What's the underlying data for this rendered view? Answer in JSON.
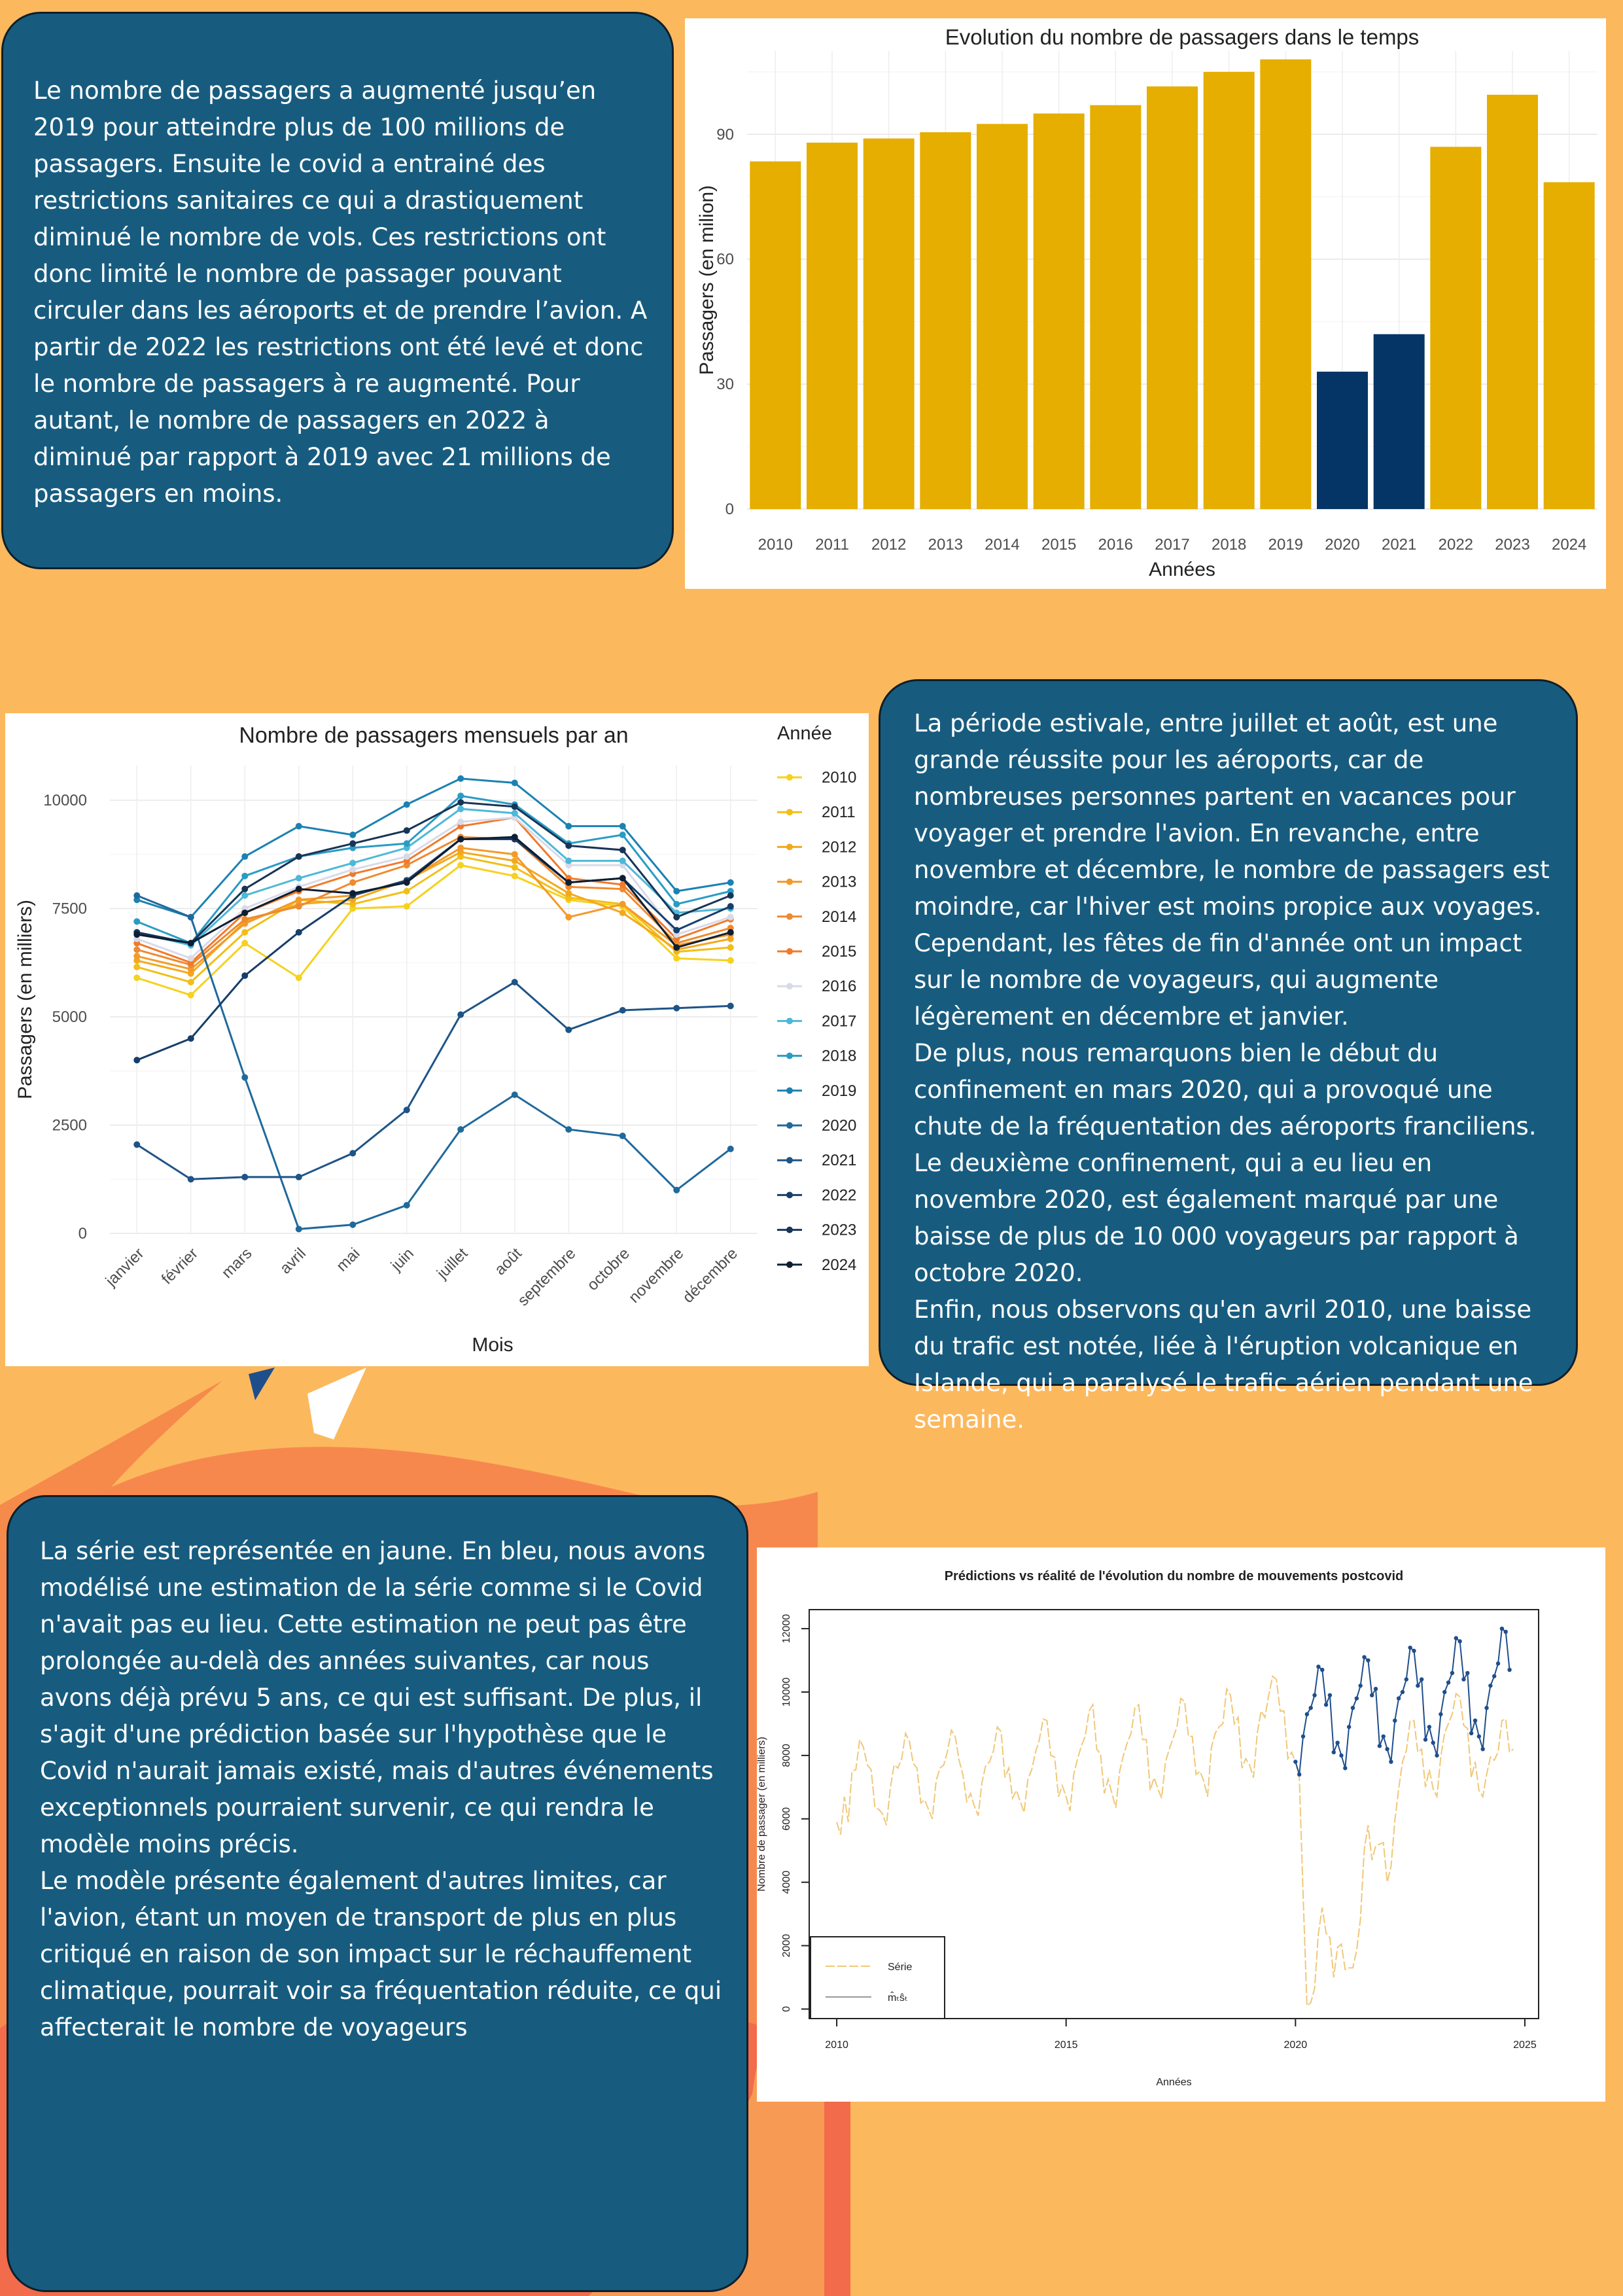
{
  "colors": {
    "background": "#FCB85D",
    "card": "#175C7F",
    "card_border": "#0E1F2C",
    "bar_normal": "#E5AE00",
    "bar_covid": "#053566",
    "series_yellow": "#F0C878",
    "series_blue": "#1F4E8C"
  },
  "text1": {
    "paragraphs": [
      "Le nombre de passagers a augmenté jusqu’en 2019 pour atteindre plus de 100 millions de passagers. Ensuite le covid a entrainé des restrictions sanitaires ce qui a drastiquement diminué le nombre de vols. Ces restrictions ont donc limité le nombre de passager pouvant circuler dans les aéroports et de prendre l’avion. A partir de 2022 les restrictions ont été levé et donc le nombre de passagers à re augmenté. Pour autant, le nombre de passagers en 2022 à diminué par rapport à 2019 avec 21 millions de passagers en moins."
    ]
  },
  "text2": {
    "paragraphs": [
      "La période estivale, entre juillet et août, est une grande réussite pour les aéroports, car de nombreuses personnes partent en vacances pour voyager et prendre l'avion. En revanche, entre novembre et décembre, le nombre de passagers est moindre, car l'hiver est moins propice aux voyages. Cependant, les fêtes de fin d'année ont un impact sur le nombre de voyageurs, qui augmente légèrement en décembre et janvier.",
      "De plus, nous remarquons bien le début du confinement en mars 2020, qui a provoqué une chute de la fréquentation des aéroports franciliens. Le deuxième confinement, qui a eu lieu en novembre 2020, est également marqué par une baisse de plus de 10 000 voyageurs par rapport à octobre 2020.",
      "Enfin, nous observons qu'en avril 2010, une baisse du trafic est notée, liée à l'éruption volcanique en Islande, qui a paralysé le trafic aérien pendant une semaine."
    ]
  },
  "text3": {
    "paragraphs": [
      "La série est représentée en jaune. En bleu, nous avons modélisé une estimation de la série comme si le Covid n'avait pas eu lieu. Cette estimation ne peut pas être prolongée au-delà des années suivantes, car nous avons déjà prévu 5 ans, ce qui est suffisant. De plus, il s'agit d'une prédiction basée sur l'hypothèse que le Covid n'aurait jamais existé, mais d'autres événements exceptionnels pourraient survenir, ce qui rendra le modèle moins précis.",
      "Le modèle présente également d'autres limites, car l'avion, étant un moyen de transport de plus en plus critiqué en raison de son impact sur le réchauffement climatique, pourrait voir sa fréquentation réduite, ce qui affecterait le nombre de voyageurs"
    ]
  },
  "chart_data": [
    {
      "type": "bar",
      "title": "Evolution du nombre de passagers dans le temps",
      "xlabel": "Années",
      "ylabel": "Passagers (en milion)",
      "ylim": [
        0,
        110
      ],
      "yticks": [
        0,
        30,
        60,
        90
      ],
      "grid": true,
      "categories": [
        "2010",
        "2011",
        "2012",
        "2013",
        "2014",
        "2015",
        "2016",
        "2017",
        "2018",
        "2019",
        "2020",
        "2021",
        "2022",
        "2023",
        "2024"
      ],
      "values": [
        83.5,
        88,
        89,
        90.5,
        92.5,
        95,
        97,
        101.5,
        105,
        108,
        33,
        42,
        87,
        99.5,
        78.5
      ],
      "highlight": [
        false,
        false,
        false,
        false,
        false,
        false,
        false,
        false,
        false,
        false,
        true,
        true,
        false,
        false,
        false
      ]
    },
    {
      "type": "line",
      "title": "Nombre de passagers mensuels par an",
      "xlabel": "Mois",
      "ylabel": "Passagers (en milliers)",
      "legend_title": "Année",
      "legend_position": "right",
      "ylim": [
        0,
        10800
      ],
      "yticks": [
        0,
        2500,
        5000,
        7500,
        10000
      ],
      "grid": true,
      "categories": [
        "janvier",
        "février",
        "mars",
        "avril",
        "mai",
        "juin",
        "juillet",
        "août",
        "septembre",
        "octobre",
        "novembre",
        "décembre"
      ],
      "series": [
        {
          "name": "2010",
          "color": "#F5D21E",
          "values": [
            5900,
            5500,
            6700,
            5900,
            7500,
            7550,
            8500,
            8250,
            7700,
            7550,
            6350,
            6300
          ]
        },
        {
          "name": "2011",
          "color": "#F2BE17",
          "values": [
            6150,
            5800,
            6950,
            7700,
            7600,
            7900,
            8700,
            8450,
            7750,
            7600,
            6500,
            6600
          ]
        },
        {
          "name": "2012",
          "color": "#F3A81C",
          "values": [
            6300,
            6000,
            7200,
            7600,
            7700,
            8150,
            8800,
            8600,
            7850,
            7400,
            6550,
            6800
          ]
        },
        {
          "name": "2013",
          "color": "#F39A2A",
          "values": [
            6400,
            6100,
            7150,
            7700,
            7800,
            8150,
            8900,
            8750,
            7300,
            7600,
            6650,
            6900
          ]
        },
        {
          "name": "2014",
          "color": "#EE8A2F",
          "values": [
            6550,
            6200,
            7250,
            7550,
            8100,
            8500,
            9150,
            9100,
            8000,
            7950,
            6700,
            7050
          ]
        },
        {
          "name": "2015",
          "color": "#F07A2A",
          "values": [
            6700,
            6250,
            7400,
            7900,
            8300,
            8600,
            9400,
            9600,
            8200,
            8050,
            6800,
            7250
          ]
        },
        {
          "name": "2016",
          "color": "#D8DAE8",
          "values": [
            6800,
            6350,
            7500,
            8000,
            8400,
            8700,
            9500,
            9600,
            8500,
            8500,
            6900,
            7300
          ]
        },
        {
          "name": "2017",
          "color": "#4DB8D8",
          "values": [
            6950,
            6650,
            7800,
            8200,
            8550,
            8900,
            9800,
            9700,
            8600,
            8600,
            7400,
            7500
          ]
        },
        {
          "name": "2018",
          "color": "#2A9CC4",
          "values": [
            7200,
            6700,
            8250,
            8700,
            8900,
            9000,
            10100,
            9900,
            9000,
            9200,
            7600,
            7900
          ]
        },
        {
          "name": "2019",
          "color": "#1A82B2",
          "values": [
            7700,
            7300,
            8700,
            9400,
            9200,
            9900,
            10500,
            10400,
            9400,
            9400,
            7900,
            8100
          ]
        },
        {
          "name": "2020",
          "color": "#20699C",
          "values": [
            7800,
            7300,
            3600,
            100,
            200,
            650,
            2400,
            3200,
            2400,
            2250,
            1000,
            1950
          ]
        },
        {
          "name": "2021",
          "color": "#1E5486",
          "values": [
            2050,
            1250,
            1300,
            1300,
            1850,
            2850,
            5050,
            5800,
            4700,
            5150,
            5200,
            5250
          ]
        },
        {
          "name": "2022",
          "color": "#163E6A",
          "values": [
            4000,
            4500,
            5950,
            6950,
            7800,
            8150,
            9100,
            9100,
            8100,
            8200,
            7000,
            7550
          ]
        },
        {
          "name": "2023",
          "color": "#173556",
          "values": [
            6950,
            6700,
            7950,
            8700,
            9000,
            9300,
            9950,
            9850,
            8950,
            8850,
            7300,
            7800
          ]
        },
        {
          "name": "2024",
          "color": "#0E1E33",
          "values": [
            6900,
            6700,
            7400,
            7950,
            7850,
            8100,
            9100,
            9150,
            8100,
            8200,
            6600,
            6950
          ]
        }
      ]
    },
    {
      "type": "line",
      "title": "Prédictions vs réalité de l'évolution du nombre de mouvements postcovid",
      "xlabel": "Années",
      "ylabel": "Nombre de passager (en milliers)",
      "xlim": [
        2009.4,
        2025.3
      ],
      "ylim": [
        -300,
        12600
      ],
      "xticks": [
        2010,
        2015,
        2020,
        2025
      ],
      "yticks": [
        0,
        2000,
        4000,
        6000,
        8000,
        10000,
        12000
      ],
      "legend_position": "bottom-left",
      "legend": [
        "Série",
        "m̂ₜŝₜ"
      ],
      "series": [
        {
          "name": "Série",
          "color": "#F0C878",
          "start": 2010.0,
          "step": 0.0833333,
          "values": [
            5900,
            5500,
            6700,
            5900,
            7500,
            7550,
            8500,
            8250,
            7700,
            7550,
            6350,
            6300,
            6150,
            5800,
            6950,
            7700,
            7600,
            7900,
            8700,
            8450,
            7750,
            7600,
            6500,
            6600,
            6300,
            6000,
            7200,
            7600,
            7700,
            8150,
            8800,
            8600,
            7850,
            7400,
            6550,
            6800,
            6400,
            6100,
            7150,
            7700,
            7800,
            8150,
            8900,
            8750,
            7300,
            7600,
            6650,
            6900,
            6550,
            6200,
            7250,
            7550,
            8100,
            8500,
            9150,
            9100,
            8000,
            7950,
            6700,
            7050,
            6700,
            6250,
            7400,
            7900,
            8300,
            8600,
            9400,
            9600,
            8200,
            8050,
            6800,
            7250,
            6800,
            6350,
            7500,
            8000,
            8400,
            8700,
            9500,
            9600,
            8500,
            8500,
            6900,
            7300,
            6950,
            6650,
            7800,
            8200,
            8550,
            8900,
            9800,
            9700,
            8600,
            8600,
            7400,
            7500,
            7200,
            6700,
            8250,
            8700,
            8900,
            9000,
            10100,
            9900,
            9000,
            9200,
            7600,
            7900,
            7700,
            7300,
            8700,
            9400,
            9200,
            9900,
            10500,
            10400,
            9400,
            9400,
            7900,
            8100,
            7800,
            7300,
            3600,
            100,
            200,
            650,
            2400,
            3200,
            2400,
            2250,
            1000,
            1950,
            2050,
            1250,
            1300,
            1300,
            1850,
            2850,
            5050,
            5800,
            4700,
            5150,
            5200,
            5250,
            4000,
            4500,
            5950,
            6950,
            7800,
            8150,
            9100,
            9100,
            8100,
            8200,
            7000,
            7550,
            6950,
            6700,
            7950,
            8700,
            9000,
            9300,
            9950,
            9850,
            8950,
            8850,
            7300,
            7800,
            6900,
            6700,
            7400,
            7950,
            7850,
            8100,
            9100,
            9150,
            8100,
            8200
          ]
        },
        {
          "name": "m̂ₜŝₜ",
          "color": "#1F4E8C",
          "start": 2020.0,
          "step": 0.0833333,
          "values": [
            7800,
            7400,
            8600,
            9300,
            9500,
            9900,
            10800,
            10700,
            9600,
            9900,
            8100,
            8400,
            8000,
            7600,
            8900,
            9500,
            9800,
            10200,
            11100,
            11000,
            9900,
            10100,
            8300,
            8600,
            8200,
            7800,
            9100,
            9800,
            10000,
            10400,
            11400,
            11300,
            10200,
            10400,
            8500,
            8900,
            8400,
            8000,
            9300,
            10000,
            10300,
            10600,
            11700,
            11600,
            10400,
            10600,
            8700,
            9100,
            8600,
            8200,
            9500,
            10200,
            10500,
            10900,
            12000,
            11900,
            10700
          ]
        }
      ]
    }
  ]
}
